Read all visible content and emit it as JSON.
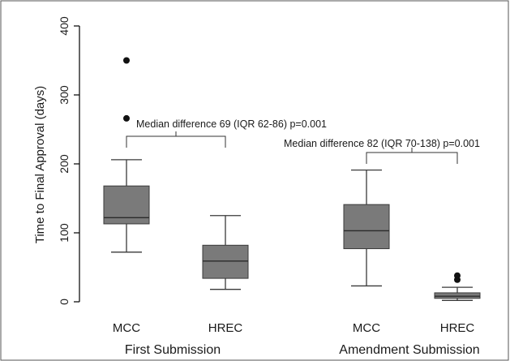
{
  "chart_data": {
    "type": "box",
    "ylabel": "Time to Final Approval (days)",
    "ylim": [
      0,
      400
    ],
    "yticks": [
      0,
      100,
      200,
      300,
      400
    ],
    "grid": false,
    "groups": [
      {
        "label": "First Submission",
        "boxes": [
          {
            "label": "MCC",
            "min": 72,
            "q1": 113,
            "median": 122,
            "q3": 168,
            "max": 206,
            "outliers": [
              266,
              350
            ]
          },
          {
            "label": "HREC",
            "min": 18,
            "q1": 34,
            "median": 59,
            "q3": 82,
            "max": 125,
            "outliers": []
          }
        ],
        "annotation": "Median difference 69 (IQR 62-86) p=0.001"
      },
      {
        "label": "Amendment Submission",
        "boxes": [
          {
            "label": "MCC",
            "min": 23,
            "q1": 77,
            "median": 103,
            "q3": 141,
            "max": 191,
            "outliers": []
          },
          {
            "label": "HREC",
            "min": 2,
            "q1": 5,
            "median": 8,
            "q3": 13,
            "max": 21,
            "outliers": [
              32,
              38
            ]
          }
        ],
        "annotation": "Median difference 82 (IQR 70-138) p=0.001"
      }
    ]
  }
}
